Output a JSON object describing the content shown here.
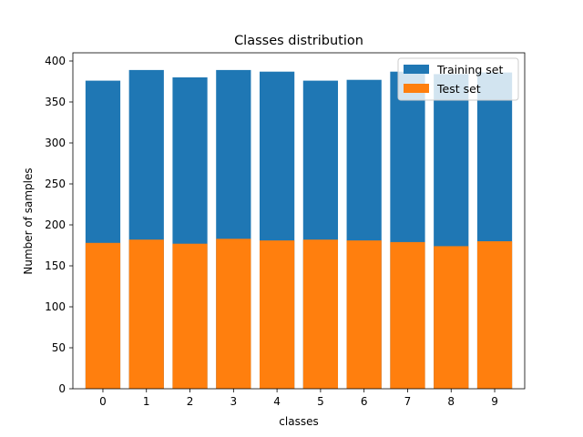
{
  "chart_data": {
    "type": "bar",
    "stacked": "overlay",
    "title": "Classes distribution",
    "xlabel": "classes",
    "ylabel": "Number of samples",
    "categories": [
      "0",
      "1",
      "2",
      "3",
      "4",
      "5",
      "6",
      "7",
      "8",
      "9"
    ],
    "ylim": [
      0,
      410
    ],
    "yticks": [
      0,
      50,
      100,
      150,
      200,
      250,
      300,
      350,
      400
    ],
    "grid": false,
    "legend_position": "top-right",
    "series": [
      {
        "name": "Training set",
        "color": "#1f77b4",
        "values": [
          376,
          389,
          380,
          389,
          387,
          376,
          377,
          387,
          384,
          386
        ]
      },
      {
        "name": "Test set",
        "color": "#ff7f0e",
        "values": [
          178,
          182,
          177,
          183,
          181,
          182,
          181,
          179,
          174,
          180
        ]
      }
    ]
  }
}
